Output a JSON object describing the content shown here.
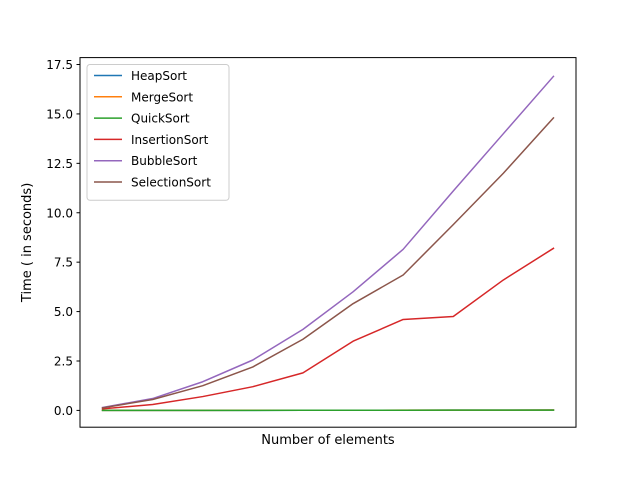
{
  "chart_data": {
    "type": "line",
    "title": "",
    "xlabel": "Number  of elements",
    "ylabel": "Time ( in seconds)",
    "ylim": [
      -0.85,
      17.85
    ],
    "yticks": [
      0.0,
      2.5,
      5.0,
      7.5,
      10.0,
      12.5,
      15.0,
      17.5
    ],
    "ytick_labels": [
      "0.0",
      "2.5",
      "5.0",
      "7.5",
      "10.0",
      "12.5",
      "15.0",
      "17.5"
    ],
    "x": [
      1,
      2,
      3,
      4,
      5,
      6,
      7,
      8,
      9,
      10
    ],
    "xlim": [
      0.55,
      10.45
    ],
    "grid": false,
    "legend_position": "top-left",
    "series": [
      {
        "name": "HeapSort",
        "color": "#1f77b4",
        "values": [
          0.001,
          0.002,
          0.003,
          0.004,
          0.006,
          0.008,
          0.01,
          0.012,
          0.014,
          0.017
        ]
      },
      {
        "name": "MergeSort",
        "color": "#ff7f0e",
        "values": [
          0.001,
          0.002,
          0.003,
          0.005,
          0.007,
          0.009,
          0.011,
          0.013,
          0.016,
          0.019
        ]
      },
      {
        "name": "QuickSort",
        "color": "#2ca02c",
        "values": [
          0.001,
          0.002,
          0.003,
          0.004,
          0.005,
          0.007,
          0.009,
          0.011,
          0.013,
          0.015
        ]
      },
      {
        "name": "InsertionSort",
        "color": "#d62728",
        "values": [
          0.08,
          0.3,
          0.7,
          1.2,
          1.9,
          3.5,
          4.6,
          4.75,
          6.6,
          8.2
        ]
      },
      {
        "name": "BubbleSort",
        "color": "#9467bd",
        "values": [
          0.15,
          0.6,
          1.45,
          2.55,
          4.1,
          6.0,
          8.15,
          11.1,
          14.0,
          16.9
        ]
      },
      {
        "name": "SelectionSort",
        "color": "#8c564b",
        "values": [
          0.13,
          0.55,
          1.25,
          2.2,
          3.6,
          5.4,
          6.85,
          9.4,
          12.0,
          14.8
        ]
      }
    ]
  }
}
